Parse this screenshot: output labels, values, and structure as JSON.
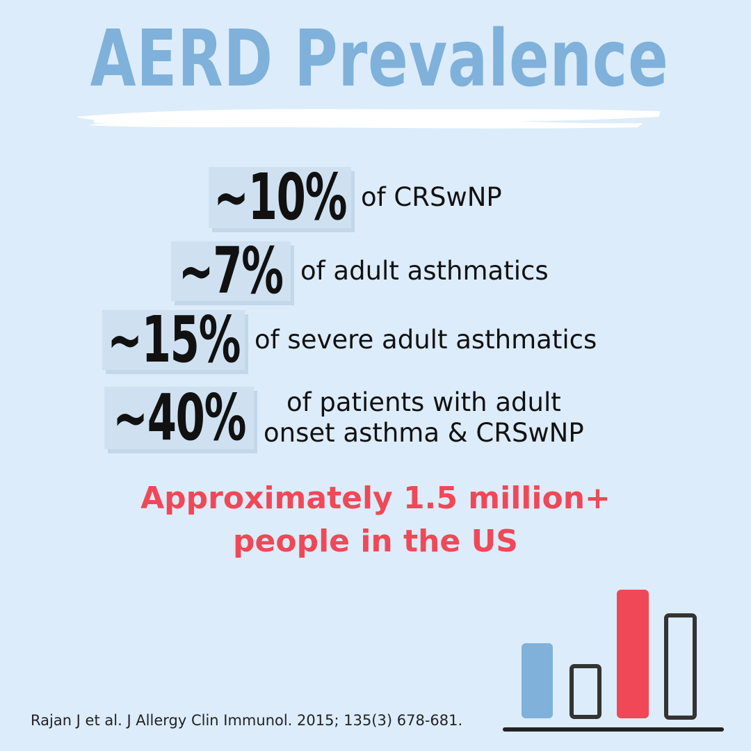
{
  "title": "AERD Prevalence",
  "stats": [
    {
      "value": "~10%",
      "label": "of CRSwNP"
    },
    {
      "value": "~7%",
      "label": "of adult asthmatics"
    },
    {
      "value": "~15%",
      "label": "of severe adult asthmatics"
    },
    {
      "value": "~40%",
      "label_line1": "of patients with adult",
      "label_line2": "onset asthma & CRSwNP"
    }
  ],
  "highlight": {
    "line1": "Approximately 1.5 million+",
    "line2": "people in the US"
  },
  "citation": "Rajan J et al. J Allergy Clin Immunol. 2015; 135(3) 678-681.",
  "icon": "bar-chart-icon",
  "colors": {
    "background": "#dcecfa",
    "title": "#7fb1da",
    "accent_red": "#f04857",
    "text": "#111111"
  }
}
